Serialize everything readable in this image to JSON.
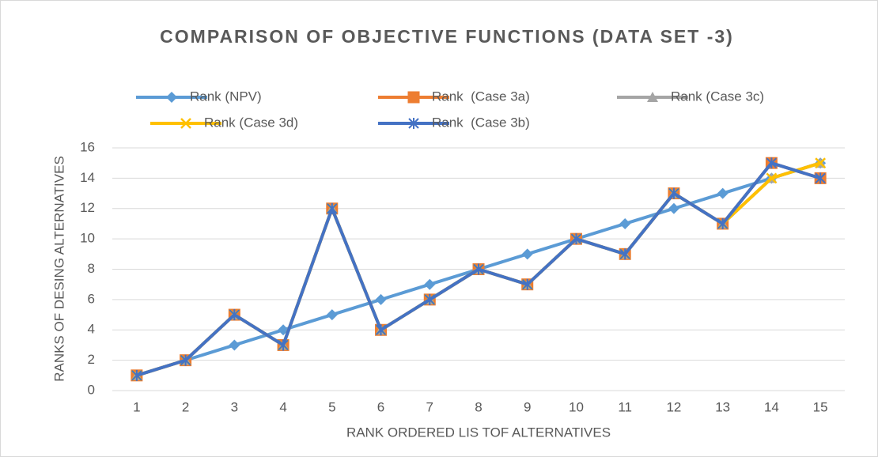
{
  "chart_data": {
    "type": "line",
    "title": "COMPARISON OF OBJECTIVE FUNCTIONS (DATA SET -3)",
    "x_label": "RANK ORDERED LIS TOF ALTERNATIVES",
    "y_label": "RANKS OF DESING ALTERNATIVES",
    "categories": [
      1,
      2,
      3,
      4,
      5,
      6,
      7,
      8,
      9,
      10,
      11,
      12,
      13,
      14,
      15
    ],
    "ylim": [
      0,
      16
    ],
    "yticks": [
      0,
      2,
      4,
      6,
      8,
      10,
      12,
      14,
      16
    ],
    "grid": true,
    "series": [
      {
        "name": "Rank (NPV)",
        "color": "#5b9bd5",
        "marker": "diamond",
        "values": [
          1,
          2,
          3,
          4,
          5,
          6,
          7,
          8,
          9,
          10,
          11,
          12,
          13,
          14,
          15
        ]
      },
      {
        "name": "Rank  (Case 3a)",
        "color": "#ed7d31",
        "marker": "square",
        "values": [
          1,
          2,
          5,
          3,
          12,
          4,
          6,
          8,
          7,
          10,
          9,
          13,
          11,
          15,
          14
        ]
      },
      {
        "name": "Rank (Case 3c)",
        "color": "#a5a5a5",
        "marker": "triangle",
        "values": [
          1,
          2,
          5,
          3,
          12,
          4,
          6,
          8,
          7,
          10,
          9,
          13,
          11,
          14,
          15
        ]
      },
      {
        "name": "Rank (Case 3d)",
        "color": "#ffc000",
        "marker": "x",
        "values": [
          1,
          2,
          5,
          3,
          12,
          4,
          6,
          8,
          7,
          10,
          9,
          13,
          11,
          14,
          15
        ]
      },
      {
        "name": "Rank  (Case 3b)",
        "color": "#4472c4",
        "marker": "star",
        "values": [
          1,
          2,
          5,
          3,
          12,
          4,
          6,
          8,
          7,
          10,
          9,
          13,
          11,
          15,
          14
        ]
      }
    ]
  }
}
